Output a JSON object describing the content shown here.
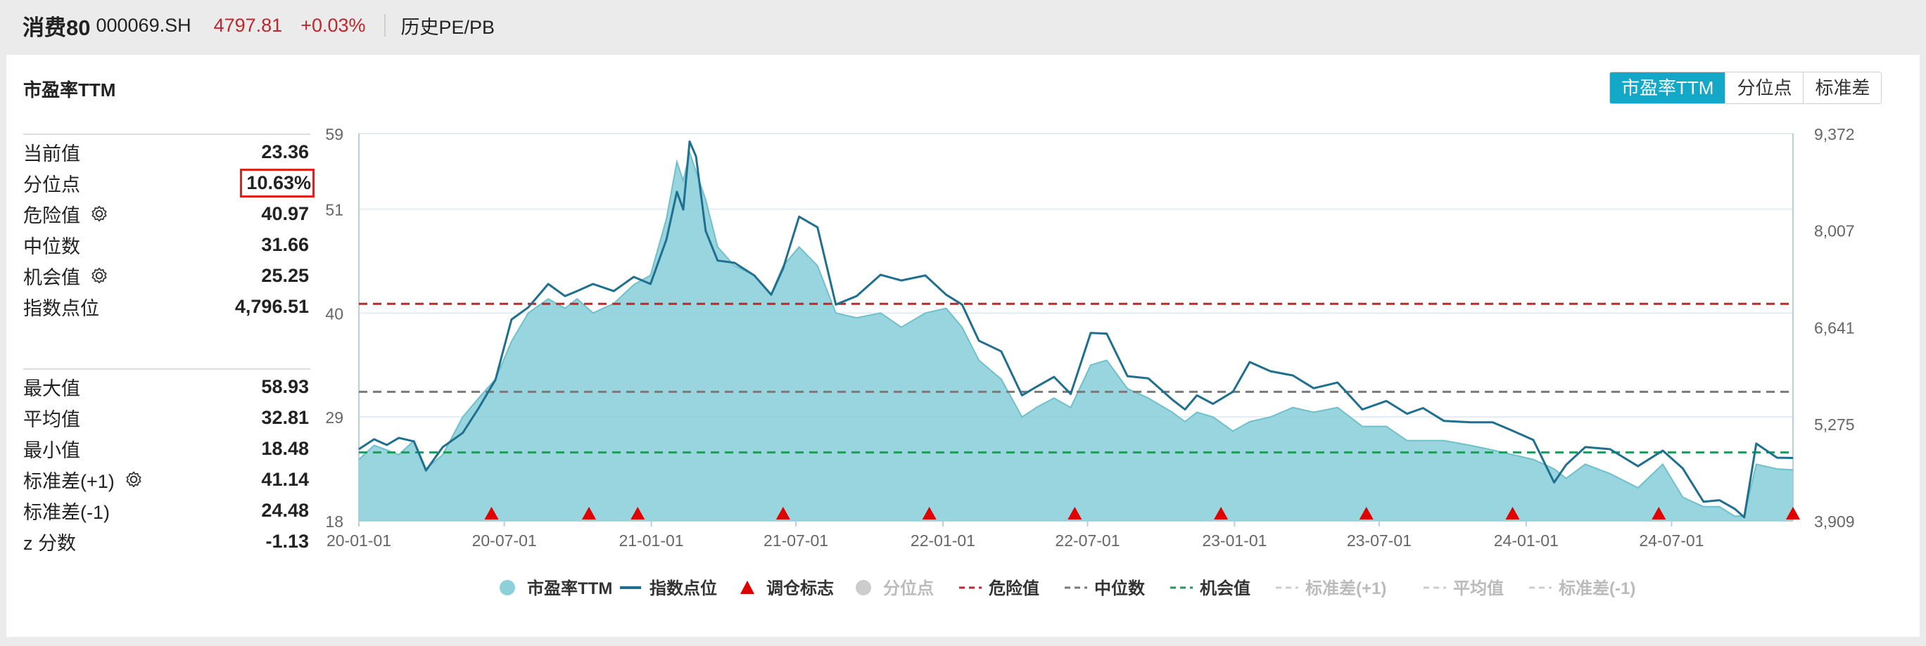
{
  "header": {
    "name": "消费80",
    "code": "000069.SH",
    "price": "4797.81",
    "change": "+0.03%",
    "link": "历史PE/PB"
  },
  "card": {
    "title": "市盈率TTM",
    "tabs": [
      {
        "label": "市盈率TTM",
        "active": true
      },
      {
        "label": "分位点",
        "active": false
      },
      {
        "label": "标准差",
        "active": false
      }
    ]
  },
  "stats": {
    "group1": [
      {
        "label": "当前值",
        "value": "23.36",
        "gear": false,
        "highlight": false
      },
      {
        "label": "分位点",
        "value": "10.63%",
        "gear": false,
        "highlight": true
      },
      {
        "label": "危险值",
        "value": "40.97",
        "gear": true,
        "highlight": false
      },
      {
        "label": "中位数",
        "value": "31.66",
        "gear": false,
        "highlight": false
      },
      {
        "label": "机会值",
        "value": "25.25",
        "gear": true,
        "highlight": false
      },
      {
        "label": "指数点位",
        "value": "4,796.51",
        "gear": false,
        "highlight": false
      }
    ],
    "group2": [
      {
        "label": "最大值",
        "value": "58.93",
        "gear": false
      },
      {
        "label": "平均值",
        "value": "32.81",
        "gear": false
      },
      {
        "label": "最小值",
        "value": "18.48",
        "gear": false
      },
      {
        "label": "标准差(+1)",
        "value": "41.14",
        "gear": true
      },
      {
        "label": "标准差(-1)",
        "value": "24.48",
        "gear": false
      },
      {
        "label": "z 分数",
        "value": "-1.13",
        "gear": false
      }
    ]
  },
  "chart_data": {
    "type": "area",
    "x_range": [
      "2020-01-01",
      "2024-11-30"
    ],
    "xticks": [
      "20-01-01",
      "20-07-01",
      "21-01-01",
      "21-07-01",
      "22-01-01",
      "22-07-01",
      "23-01-01",
      "23-07-01",
      "24-01-01",
      "24-07-01"
    ],
    "ylim_left": [
      18,
      59
    ],
    "yticks_left": [
      "59",
      "51",
      "40",
      "29",
      "18"
    ],
    "yticks_left_values": [
      59,
      51,
      40,
      29,
      18
    ],
    "ylim_right": [
      3909,
      9372
    ],
    "yticks_right": [
      "9,372",
      "8,007",
      "6,641",
      "5,275",
      "3,909"
    ],
    "yticks_right_values": [
      9372,
      8007,
      6641,
      5275,
      3909
    ],
    "pe_series": {
      "name": "市盈率TTM",
      "color": "#8dd0da",
      "dates": [
        "2020-01-01",
        "2020-01-20",
        "2020-02-05",
        "2020-02-20",
        "2020-03-10",
        "2020-03-25",
        "2020-04-15",
        "2020-05-10",
        "2020-05-30",
        "2020-06-20",
        "2020-07-10",
        "2020-07-31",
        "2020-08-25",
        "2020-09-15",
        "2020-09-30",
        "2020-10-20",
        "2020-11-15",
        "2020-12-10",
        "2020-12-31",
        "2021-01-20",
        "2021-02-02",
        "2021-02-10",
        "2021-02-18",
        "2021-02-26",
        "2021-03-10",
        "2021-03-25",
        "2021-04-15",
        "2021-05-10",
        "2021-05-31",
        "2021-06-15",
        "2021-07-05",
        "2021-07-28",
        "2021-08-20",
        "2021-09-15",
        "2021-10-15",
        "2021-11-10",
        "2021-12-10",
        "2022-01-05",
        "2022-01-25",
        "2022-02-15",
        "2022-03-15",
        "2022-04-10",
        "2022-04-28",
        "2022-05-20",
        "2022-06-10",
        "2022-07-05",
        "2022-07-25",
        "2022-08-20",
        "2022-09-15",
        "2022-10-15",
        "2022-10-31",
        "2022-11-15",
        "2022-12-05",
        "2022-12-30",
        "2023-01-20",
        "2023-02-15",
        "2023-03-15",
        "2023-04-10",
        "2023-05-10",
        "2023-06-10",
        "2023-07-10",
        "2023-08-05",
        "2023-08-25",
        "2023-09-20",
        "2023-10-23",
        "2023-11-20",
        "2023-12-15",
        "2024-01-10",
        "2024-02-05",
        "2024-02-20",
        "2024-03-15",
        "2024-04-15",
        "2024-05-20",
        "2024-06-20",
        "2024-07-15",
        "2024-08-10",
        "2024-08-30",
        "2024-09-18",
        "2024-09-30",
        "2024-10-15",
        "2024-11-10",
        "2024-11-30"
      ],
      "values": [
        24.5,
        26,
        25.5,
        25,
        26.5,
        23.5,
        25,
        29,
        31,
        33,
        37,
        40,
        41.5,
        40.5,
        41.5,
        40,
        41,
        43,
        44,
        50,
        56,
        54,
        57,
        55,
        52,
        47,
        45,
        44,
        42,
        45,
        47,
        45,
        40,
        39.5,
        40,
        38.5,
        40,
        40.5,
        38.5,
        35,
        33,
        29,
        30,
        31,
        30,
        34.5,
        35,
        32,
        31,
        29.5,
        28.5,
        29.5,
        29,
        27.5,
        28.5,
        29,
        30,
        29.5,
        30,
        28,
        28,
        26.5,
        26.5,
        26.5,
        26,
        25.5,
        25,
        24.5,
        23.5,
        22.5,
        24,
        23,
        21.5,
        24,
        20.5,
        19.5,
        19.5,
        18.5,
        18.5,
        24,
        23.5,
        23.4
      ]
    },
    "index_series": {
      "name": "指数点位",
      "color": "#1f6f8f",
      "dates": [
        "2020-01-01",
        "2020-01-20",
        "2020-02-05",
        "2020-02-20",
        "2020-03-10",
        "2020-03-25",
        "2020-04-15",
        "2020-05-10",
        "2020-05-30",
        "2020-06-20",
        "2020-07-10",
        "2020-07-31",
        "2020-08-25",
        "2020-09-15",
        "2020-09-30",
        "2020-10-20",
        "2020-11-15",
        "2020-12-10",
        "2020-12-31",
        "2021-01-20",
        "2021-02-02",
        "2021-02-10",
        "2021-02-18",
        "2021-02-26",
        "2021-03-10",
        "2021-03-25",
        "2021-04-15",
        "2021-05-10",
        "2021-05-31",
        "2021-06-15",
        "2021-07-05",
        "2021-07-28",
        "2021-08-20",
        "2021-09-15",
        "2021-10-15",
        "2021-11-10",
        "2021-12-10",
        "2022-01-05",
        "2022-01-25",
        "2022-02-15",
        "2022-03-15",
        "2022-04-10",
        "2022-04-28",
        "2022-05-20",
        "2022-06-10",
        "2022-07-05",
        "2022-07-25",
        "2022-08-20",
        "2022-09-15",
        "2022-10-15",
        "2022-10-31",
        "2022-11-15",
        "2022-12-05",
        "2022-12-30",
        "2023-01-20",
        "2023-02-15",
        "2023-03-15",
        "2023-04-10",
        "2023-05-10",
        "2023-06-10",
        "2023-07-10",
        "2023-08-05",
        "2023-08-25",
        "2023-09-20",
        "2023-10-23",
        "2023-11-20",
        "2023-12-15",
        "2024-01-10",
        "2024-02-05",
        "2024-02-20",
        "2024-03-15",
        "2024-04-15",
        "2024-05-20",
        "2024-06-20",
        "2024-07-15",
        "2024-08-10",
        "2024-08-30",
        "2024-09-18",
        "2024-09-30",
        "2024-10-15",
        "2024-11-10",
        "2024-11-30"
      ],
      "values": [
        4920,
        5060,
        4980,
        5080,
        5030,
        4620,
        4950,
        5150,
        5500,
        5900,
        6750,
        6920,
        7250,
        7080,
        7150,
        7250,
        7150,
        7350,
        7250,
        7880,
        8550,
        8300,
        9260,
        9050,
        8000,
        7580,
        7550,
        7370,
        7100,
        7470,
        8200,
        8050,
        6960,
        7080,
        7380,
        7300,
        7370,
        7100,
        6960,
        6450,
        6300,
        5680,
        5800,
        5940,
        5700,
        6560,
        6550,
        5950,
        5920,
        5620,
        5480,
        5680,
        5560,
        5730,
        6150,
        6020,
        5960,
        5780,
        5860,
        5480,
        5600,
        5420,
        5500,
        5320,
        5300,
        5300,
        5180,
        5050,
        4450,
        4700,
        4950,
        4920,
        4680,
        4900,
        4650,
        4180,
        4200,
        4080,
        3960,
        5000,
        4800,
        4796.51
      ]
    },
    "rebalance_marks": {
      "name": "调仓标志",
      "dates": [
        "2020-06-15",
        "2020-10-15",
        "2020-12-15",
        "2021-06-15",
        "2021-12-15",
        "2022-06-15",
        "2022-12-15",
        "2023-06-15",
        "2023-12-15",
        "2024-06-15",
        "2024-12-01"
      ]
    },
    "danger_value": {
      "name": "危险值",
      "value": 40.97,
      "color": "#c0262b"
    },
    "median_value": {
      "name": "中位数",
      "value": 31.66,
      "color": "#7a7a7a"
    },
    "opportunity_value": {
      "name": "机会值",
      "value": 25.25,
      "color": "#1e9a5a"
    },
    "legend_position": "bottom",
    "legend": [
      {
        "label": "市盈率TTM",
        "kind": "dot",
        "color": "#8dd0da",
        "active": true
      },
      {
        "label": "指数点位",
        "kind": "line",
        "color": "#1f6f8f",
        "active": true
      },
      {
        "label": "调仓标志",
        "kind": "triangle",
        "color": "#e00000",
        "active": true
      },
      {
        "label": "分位点",
        "kind": "dot",
        "color": "#cccccc",
        "active": false
      },
      {
        "label": "危险值",
        "kind": "dash",
        "color": "#c0262b",
        "active": true
      },
      {
        "label": "中位数",
        "kind": "dash",
        "color": "#7a7a7a",
        "active": true
      },
      {
        "label": "机会值",
        "kind": "dash",
        "color": "#1e9a5a",
        "active": true
      },
      {
        "label": "标准差(+1)",
        "kind": "dash",
        "color": "#cccccc",
        "active": false
      },
      {
        "label": "平均值",
        "kind": "dash",
        "color": "#cccccc",
        "active": false
      },
      {
        "label": "标准差(-1)",
        "kind": "dash",
        "color": "#cccccc",
        "active": false
      }
    ]
  }
}
